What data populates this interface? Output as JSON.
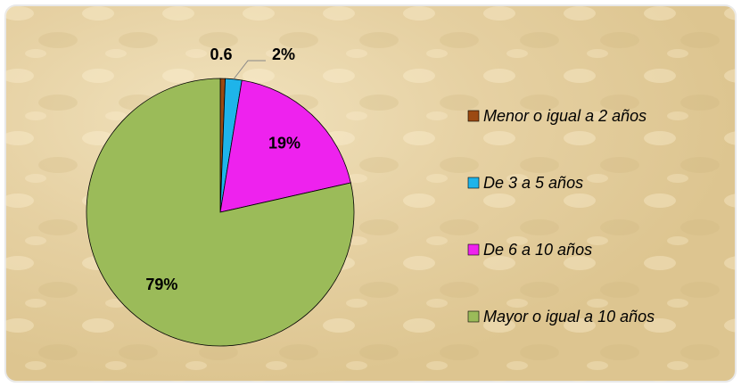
{
  "chart_data": {
    "type": "pie",
    "categories": [
      "Menor o igual a 2 años",
      "De 3 a 5 años",
      "De 6 a 10 años",
      "Mayor o igual a 10 años"
    ],
    "values": [
      0.6,
      2,
      19,
      79
    ],
    "value_labels": [
      "0.6",
      "2%",
      "19%",
      "79%"
    ],
    "colors": [
      "#9c4a12",
      "#1eb4ea",
      "#ee22ee",
      "#9bbb59"
    ],
    "legend": "right"
  }
}
